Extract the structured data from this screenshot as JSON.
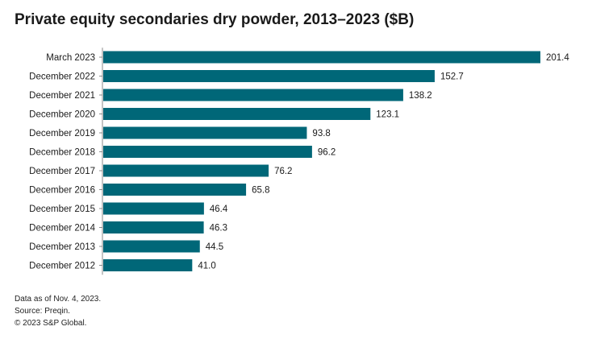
{
  "chart_data": {
    "type": "bar",
    "orientation": "horizontal",
    "title": "Private equity secondaries dry powder, 2013–2023 ($B)",
    "categories": [
      "March 2023",
      "December 2022",
      "December 2021",
      "December 2020",
      "December 2019",
      "December 2018",
      "December 2017",
      "December 2016",
      "December 2015",
      "December 2014",
      "December 2013",
      "December 2012"
    ],
    "values": [
      201.4,
      152.7,
      138.2,
      123.1,
      93.8,
      96.2,
      76.2,
      65.8,
      46.4,
      46.3,
      44.5,
      41.0
    ],
    "value_labels": [
      "201.4",
      "152.7",
      "138.2",
      "123.1",
      "93.8",
      "96.2",
      "76.2",
      "65.8",
      "46.4",
      "46.3",
      "44.5",
      "41.0"
    ],
    "xlim": [
      0,
      201.4
    ],
    "bar_color": "#006778",
    "grid": false,
    "xlabel": "",
    "ylabel": ""
  },
  "footnotes": {
    "data_note": "Data as of Nov. 4, 2023.",
    "source": "Source: Preqin.",
    "copyright": "© 2023 S&P Global."
  }
}
